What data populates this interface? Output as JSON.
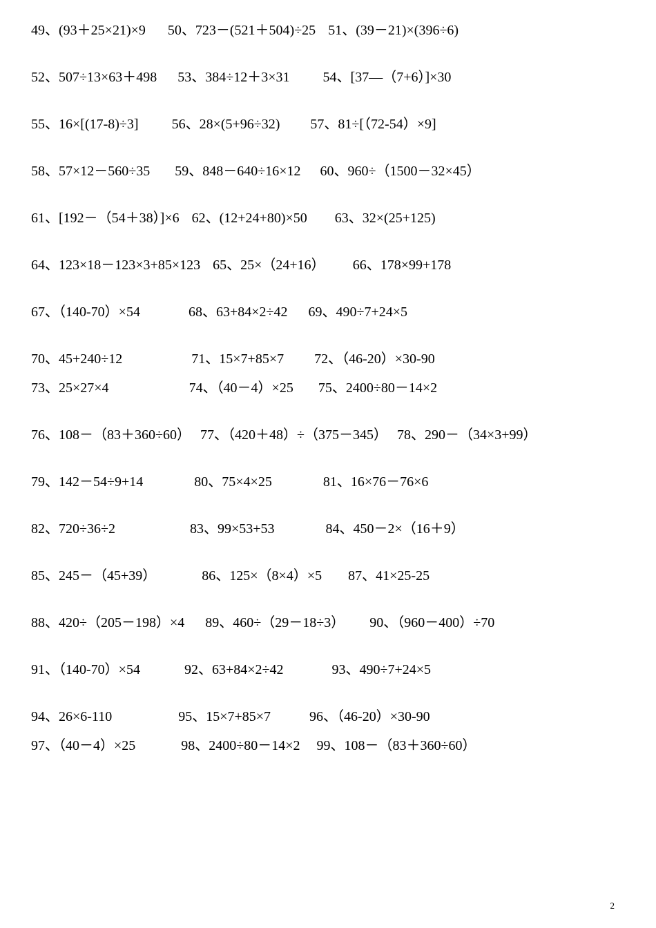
{
  "rows": [
    {
      "class": "row",
      "items": [
        {
          "num": "49",
          "expr": "(93＋25×21)×9",
          "gap_after": 32
        },
        {
          "num": "50",
          "expr": "723－(521＋504)÷25",
          "gap_after": 18
        },
        {
          "num": "51",
          "expr": "(39－21)×(396÷6)",
          "gap_after": 0
        }
      ]
    },
    {
      "class": "row",
      "items": [
        {
          "num": "52",
          "expr": "507÷13×63＋498",
          "gap_after": 30
        },
        {
          "num": "53",
          "expr": "384÷12＋3×31",
          "gap_after": 48
        },
        {
          "num": "54",
          "expr": "[37—（7+6）]×30",
          "gap_after": 0
        }
      ]
    },
    {
      "class": "row",
      "items": [
        {
          "num": "55",
          "expr": "16×[(17-8)÷3]",
          "gap_after": 48
        },
        {
          "num": "56",
          "expr": "28×(5+96÷32)",
          "gap_after": 44
        },
        {
          "num": "57",
          "expr": "81÷[（72-54）×9]",
          "gap_after": 0
        }
      ]
    },
    {
      "class": "row",
      "items": [
        {
          "num": "58",
          "expr": "57×12－560÷35",
          "gap_after": 36
        },
        {
          "num": "59",
          "expr": "848－640÷16×12",
          "gap_after": 28
        },
        {
          "num": "60",
          "expr": "960÷（1500－32×45）",
          "gap_after": 0
        }
      ]
    },
    {
      "class": "row",
      "items": [
        {
          "num": "61",
          "expr": "[192－（54＋38）]×6",
          "gap_after": 18
        },
        {
          "num": "62",
          "expr": "(12+24+80)×50",
          "gap_after": 40
        },
        {
          "num": "63",
          "expr": "32×(25+125)",
          "gap_after": 0
        }
      ]
    },
    {
      "class": "row",
      "items": [
        {
          "num": "64",
          "expr": "123×18－123×3+85×123",
          "gap_after": 18
        },
        {
          "num": "65",
          "expr": "25×（24+16）",
          "gap_after": 40
        },
        {
          "num": "66",
          "expr": "178×99+178",
          "gap_after": 0
        }
      ]
    },
    {
      "class": "row",
      "items": [
        {
          "num": "67",
          "expr": "（140-70）×54",
          "gap_after": 70
        },
        {
          "num": "68",
          "expr": "63+84×2÷42",
          "gap_after": 30
        },
        {
          "num": "69",
          "expr": "490÷7+24×5",
          "gap_after": 0
        }
      ]
    },
    {
      "class": "row tight",
      "items": [
        {
          "num": "70",
          "expr": "45+240÷12",
          "gap_after": 100
        },
        {
          "num": "71",
          "expr": "15×7+85×7",
          "gap_after": 44
        },
        {
          "num": "72",
          "expr": "（46-20）×30-90",
          "gap_after": 0
        }
      ]
    },
    {
      "class": "row",
      "items": [
        {
          "num": "73",
          "expr": "25×27×4",
          "gap_after": 116
        },
        {
          "num": "74",
          "expr": "（40－4）×25",
          "gap_after": 36
        },
        {
          "num": "75",
          "expr": "2400÷80－14×2",
          "gap_after": 0
        }
      ]
    },
    {
      "class": "row",
      "items": [
        {
          "num": "76",
          "expr": "108－（83＋360÷60）",
          "gap_after": 14
        },
        {
          "num": "77",
          "expr": "（420＋48）÷（375－345）",
          "gap_after": 14
        },
        {
          "num": "78",
          "expr": "290－（34×3+99）",
          "gap_after": 0
        }
      ]
    },
    {
      "class": "row",
      "items": [
        {
          "num": "79",
          "expr": "142－54÷9+14",
          "gap_after": 74
        },
        {
          "num": "80",
          "expr": "75×4×25",
          "gap_after": 74
        },
        {
          "num": "81",
          "expr": "16×76－76×6",
          "gap_after": 0
        }
      ]
    },
    {
      "class": "row",
      "items": [
        {
          "num": "82",
          "expr": "720÷36÷2",
          "gap_after": 108
        },
        {
          "num": "83",
          "expr": "99×53+53",
          "gap_after": 74
        },
        {
          "num": "84",
          "expr": "450－2×（16＋9）",
          "gap_after": 0
        }
      ]
    },
    {
      "class": "row",
      "items": [
        {
          "num": "85",
          "expr": "245－（45+39）",
          "gap_after": 66
        },
        {
          "num": "86",
          "expr": "125×（8×4）×5",
          "gap_after": 38
        },
        {
          "num": "87",
          "expr": "41×25-25",
          "gap_after": 0
        }
      ]
    },
    {
      "class": "row",
      "items": [
        {
          "num": "88",
          "expr": "420÷（205－198）×4",
          "gap_after": 30
        },
        {
          "num": "89",
          "expr": "460÷（29－18÷3）",
          "gap_after": 36
        },
        {
          "num": "90",
          "expr": "（960－400）÷70",
          "gap_after": 0
        }
      ]
    },
    {
      "class": "row",
      "items": [
        {
          "num": "91",
          "expr": "（140-70）×54",
          "gap_after": 64
        },
        {
          "num": "92",
          "expr": "63+84×2÷42",
          "gap_after": 70
        },
        {
          "num": "93",
          "expr": "490÷7+24×5",
          "gap_after": 0
        }
      ]
    },
    {
      "class": "row tight",
      "items": [
        {
          "num": "94",
          "expr": "26×6-110",
          "gap_after": 96
        },
        {
          "num": "95",
          "expr": "15×7+85×7",
          "gap_after": 56
        },
        {
          "num": "96",
          "expr": "（46-20）×30-90",
          "gap_after": 0
        }
      ]
    },
    {
      "class": "row",
      "items": [
        {
          "num": "97",
          "expr": "（40－4）×25",
          "gap_after": 66
        },
        {
          "num": "98",
          "expr": "2400÷80－14×2",
          "gap_after": 24
        },
        {
          "num": "99",
          "expr": "108－（83＋360÷60）",
          "gap_after": 0
        }
      ]
    }
  ],
  "separator": "、",
  "page_number": "2"
}
